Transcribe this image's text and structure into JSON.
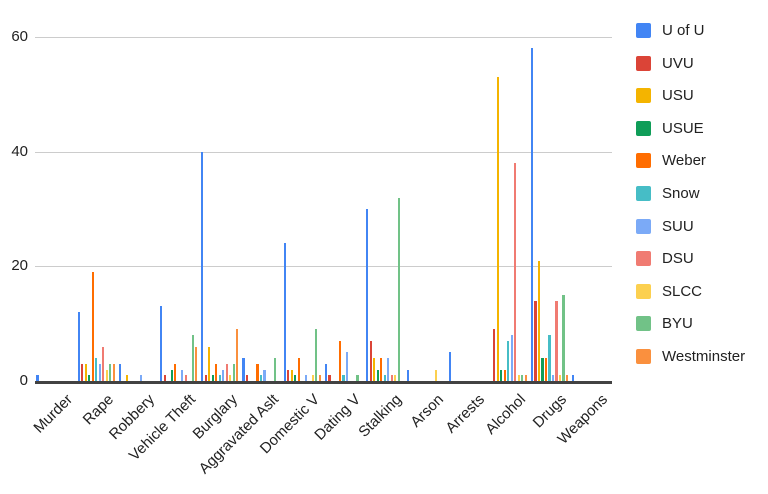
{
  "chart_data": {
    "type": "bar",
    "title": "",
    "xlabel": "",
    "ylabel": "",
    "ylim": [
      0,
      60
    ],
    "yticks": [
      0,
      20,
      40,
      60
    ],
    "grid": "horizontal",
    "legend_position": "right",
    "categories": [
      "Murder",
      "Rape",
      "Robbery",
      "Vehicle Theft",
      "Burglary",
      "Aggravated Aslt",
      "Domestic V",
      "Dating V",
      "Stalking",
      "Arson",
      "Arrests",
      "Alcohol",
      "Drugs",
      "Weapons"
    ],
    "series": [
      {
        "name": "U of U",
        "color": "#4285F4",
        "values": [
          1,
          12,
          3,
          13,
          40,
          4,
          24,
          3,
          30,
          2,
          5,
          0,
          58,
          1
        ]
      },
      {
        "name": "UVU",
        "color": "#DB4437",
        "values": [
          0,
          3,
          0,
          1,
          1,
          1,
          2,
          1,
          7,
          0,
          0,
          9,
          14,
          0
        ]
      },
      {
        "name": "USU",
        "color": "#F4B400",
        "values": [
          0,
          3,
          1,
          0,
          6,
          0,
          2,
          0,
          4,
          0,
          0,
          53,
          21,
          0
        ]
      },
      {
        "name": "USUE",
        "color": "#0F9D58",
        "values": [
          0,
          1,
          0,
          2,
          1,
          0,
          1,
          0,
          2,
          0,
          0,
          2,
          4,
          0
        ]
      },
      {
        "name": "Weber",
        "color": "#FF6D00",
        "values": [
          0,
          19,
          0,
          3,
          3,
          3,
          4,
          7,
          4,
          0,
          0,
          2,
          4,
          0
        ]
      },
      {
        "name": "Snow",
        "color": "#46BDC6",
        "values": [
          0,
          4,
          0,
          0,
          1,
          1,
          0,
          1,
          1,
          0,
          0,
          7,
          8,
          0
        ]
      },
      {
        "name": "SUU",
        "color": "#7BAAF7",
        "values": [
          0,
          3,
          1,
          2,
          2,
          2,
          1,
          5,
          4,
          0,
          0,
          8,
          1,
          0
        ]
      },
      {
        "name": "DSU",
        "color": "#F07B72",
        "values": [
          0,
          6,
          0,
          1,
          3,
          0,
          0,
          0,
          1,
          0,
          0,
          38,
          14,
          0
        ]
      },
      {
        "name": "SLCC",
        "color": "#FCD04F",
        "values": [
          0,
          2,
          0,
          0,
          1,
          0,
          1,
          0,
          1,
          2,
          0,
          1,
          1,
          0
        ]
      },
      {
        "name": "BYU",
        "color": "#71C287",
        "values": [
          0,
          3,
          0,
          8,
          3,
          4,
          9,
          1,
          32,
          0,
          0,
          1,
          15,
          0
        ]
      },
      {
        "name": "Westminster",
        "color": "#FA903E",
        "values": [
          0,
          3,
          0,
          6,
          9,
          0,
          1,
          0,
          0,
          0,
          0,
          1,
          1,
          0
        ]
      }
    ],
    "colors": {
      "gridline": "#cccccc",
      "axis_line": "#424242",
      "axis_text": "#212121",
      "background": "#ffffff"
    }
  }
}
